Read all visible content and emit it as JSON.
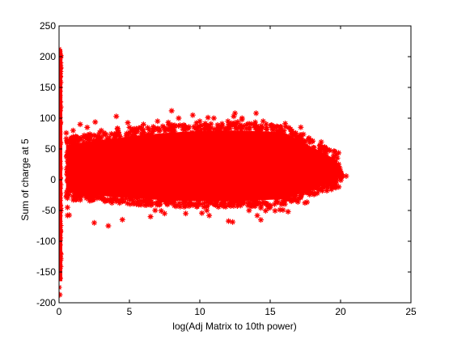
{
  "chart_data": {
    "type": "scatter",
    "title": "",
    "xlabel": "log(Adj Matrix to 10th power)",
    "ylabel": "Sum of charge at 5",
    "xlim": [
      0,
      25
    ],
    "ylim": [
      -200,
      250
    ],
    "xticks": [
      0,
      5,
      10,
      15,
      20,
      25
    ],
    "yticks": [
      -200,
      -150,
      -100,
      -50,
      0,
      50,
      100,
      150,
      200,
      250
    ],
    "xtick_labels": [
      "0",
      "5",
      "10",
      "15",
      "20",
      "25"
    ],
    "ytick_labels": [
      "-200",
      "-150",
      "-100",
      "-50",
      "0",
      "50",
      "100",
      "150",
      "200",
      "250"
    ],
    "grid": false,
    "marker": "asterisk",
    "marker_color": "#ff0000",
    "series": [
      {
        "description_points": [
          [
            0.0,
            212
          ],
          [
            0.05,
            208
          ],
          [
            0.1,
            200
          ],
          [
            0.02,
            180
          ],
          [
            0.08,
            150
          ],
          [
            0.0,
            120
          ],
          [
            0.05,
            90
          ],
          [
            0.1,
            60
          ],
          [
            0.0,
            30
          ],
          [
            0.03,
            0
          ],
          [
            0.07,
            -30
          ],
          [
            0.0,
            -60
          ],
          [
            0.05,
            -90
          ],
          [
            0.1,
            -120
          ],
          [
            0.02,
            -150
          ],
          [
            0.08,
            -160
          ],
          [
            0.0,
            -175
          ],
          [
            0.05,
            -187
          ],
          [
            0.6,
            60
          ],
          [
            0.6,
            30
          ],
          [
            0.6,
            0
          ],
          [
            0.6,
            -30
          ],
          [
            0.6,
            -45
          ],
          [
            0.6,
            -58
          ],
          [
            1.0,
            80
          ],
          [
            1.5,
            90
          ],
          [
            2.0,
            85
          ],
          [
            3.0,
            80
          ],
          [
            3.5,
            -75
          ],
          [
            2.5,
            -70
          ],
          [
            4.5,
            -65
          ],
          [
            5.0,
            85
          ],
          [
            6.0,
            90
          ],
          [
            6.5,
            -60
          ],
          [
            7.0,
            95
          ],
          [
            7.5,
            -55
          ],
          [
            8.0,
            112
          ],
          [
            8.5,
            100
          ],
          [
            9.0,
            -55
          ],
          [
            9.5,
            105
          ],
          [
            10.0,
            95
          ],
          [
            10.5,
            -50
          ],
          [
            11.0,
            100
          ],
          [
            12.0,
            95
          ],
          [
            12.5,
            108
          ],
          [
            13.0,
            100
          ],
          [
            13.5,
            -50
          ],
          [
            14.0,
            108
          ],
          [
            14.5,
            95
          ],
          [
            15.0,
            -45
          ],
          [
            15.5,
            80
          ],
          [
            16.0,
            70
          ],
          [
            16.5,
            -35
          ],
          [
            17.0,
            60
          ],
          [
            17.5,
            55
          ],
          [
            18.0,
            -15
          ],
          [
            18.5,
            45
          ],
          [
            19.0,
            38
          ],
          [
            19.5,
            35
          ],
          [
            19.8,
            20
          ],
          [
            20.0,
            5
          ],
          [
            20.4,
            6
          ],
          [
            19.2,
            0
          ],
          [
            19.6,
            10
          ],
          [
            18.8,
            25
          ],
          [
            17.2,
            -25
          ]
        ]
      }
    ]
  }
}
